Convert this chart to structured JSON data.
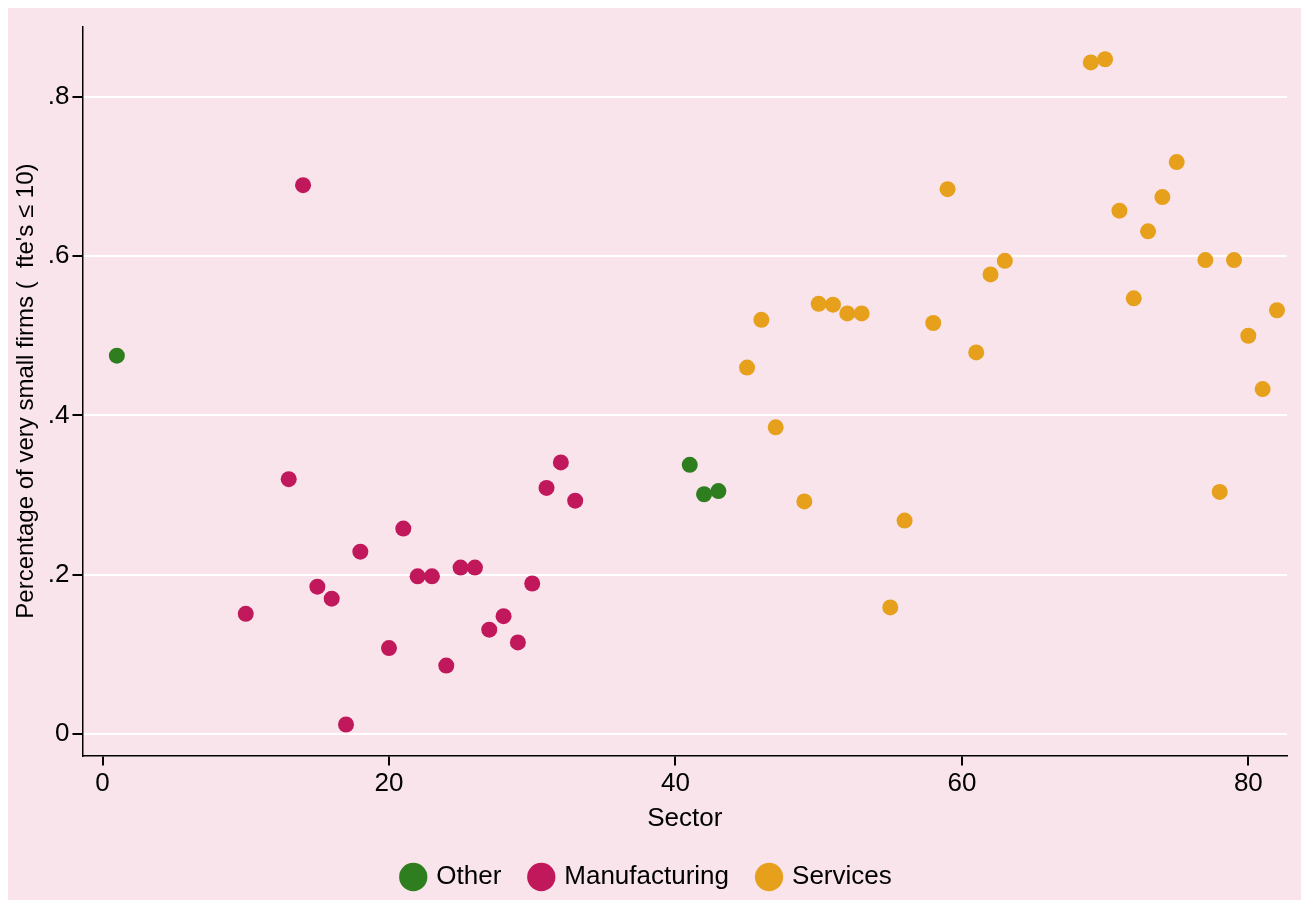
{
  "chart_data": {
    "type": "scatter",
    "xlabel": "Sector",
    "ylabel": "Percentage of very small firms (  fte's ≤ 10)",
    "xlim": [
      -1.4,
      82.7
    ],
    "xticks": [
      0,
      20,
      40,
      60,
      80
    ],
    "ylim": [
      -0.027,
      0.888
    ],
    "yticks": [
      {
        "value": 0,
        "label": "0"
      },
      {
        "value": 0.2,
        "label": ".2"
      },
      {
        "value": 0.4,
        "label": ".4"
      },
      {
        "value": 0.6,
        "label": ".6"
      },
      {
        "value": 0.8,
        "label": ".8"
      }
    ],
    "grid": "y",
    "legend": "bottom",
    "marker": "circle",
    "series": [
      {
        "name": "Other",
        "color": "#2e7d1e",
        "x": [
          1,
          41,
          42,
          43
        ],
        "values": [
          0.475,
          0.338,
          0.301,
          0.305
        ]
      },
      {
        "name": "Manufacturing",
        "color": "#c0185a",
        "x": [
          10,
          13,
          14,
          15,
          16,
          17,
          18,
          20,
          21,
          22,
          23,
          24,
          25,
          26,
          27,
          28,
          29,
          30,
          31,
          32,
          33
        ],
        "values": [
          0.151,
          0.32,
          0.689,
          0.185,
          0.17,
          0.012,
          0.229,
          0.108,
          0.258,
          0.198,
          0.198,
          0.086,
          0.209,
          0.209,
          0.131,
          0.148,
          0.115,
          0.189,
          0.309,
          0.341,
          0.293
        ]
      },
      {
        "name": "Services",
        "color": "#e6a01c",
        "x": [
          45,
          46,
          47,
          49,
          50,
          51,
          52,
          53,
          55,
          56,
          58,
          59,
          61,
          62,
          63,
          69,
          70,
          71,
          72,
          73,
          74,
          75,
          77,
          78,
          79,
          80,
          81,
          82
        ],
        "values": [
          0.46,
          0.52,
          0.385,
          0.292,
          0.54,
          0.539,
          0.528,
          0.528,
          0.159,
          0.268,
          0.516,
          0.684,
          0.479,
          0.577,
          0.594,
          0.843,
          0.847,
          0.657,
          0.547,
          0.631,
          0.674,
          0.718,
          0.595,
          0.304,
          0.595,
          0.5,
          0.433,
          0.532
        ]
      }
    ]
  }
}
